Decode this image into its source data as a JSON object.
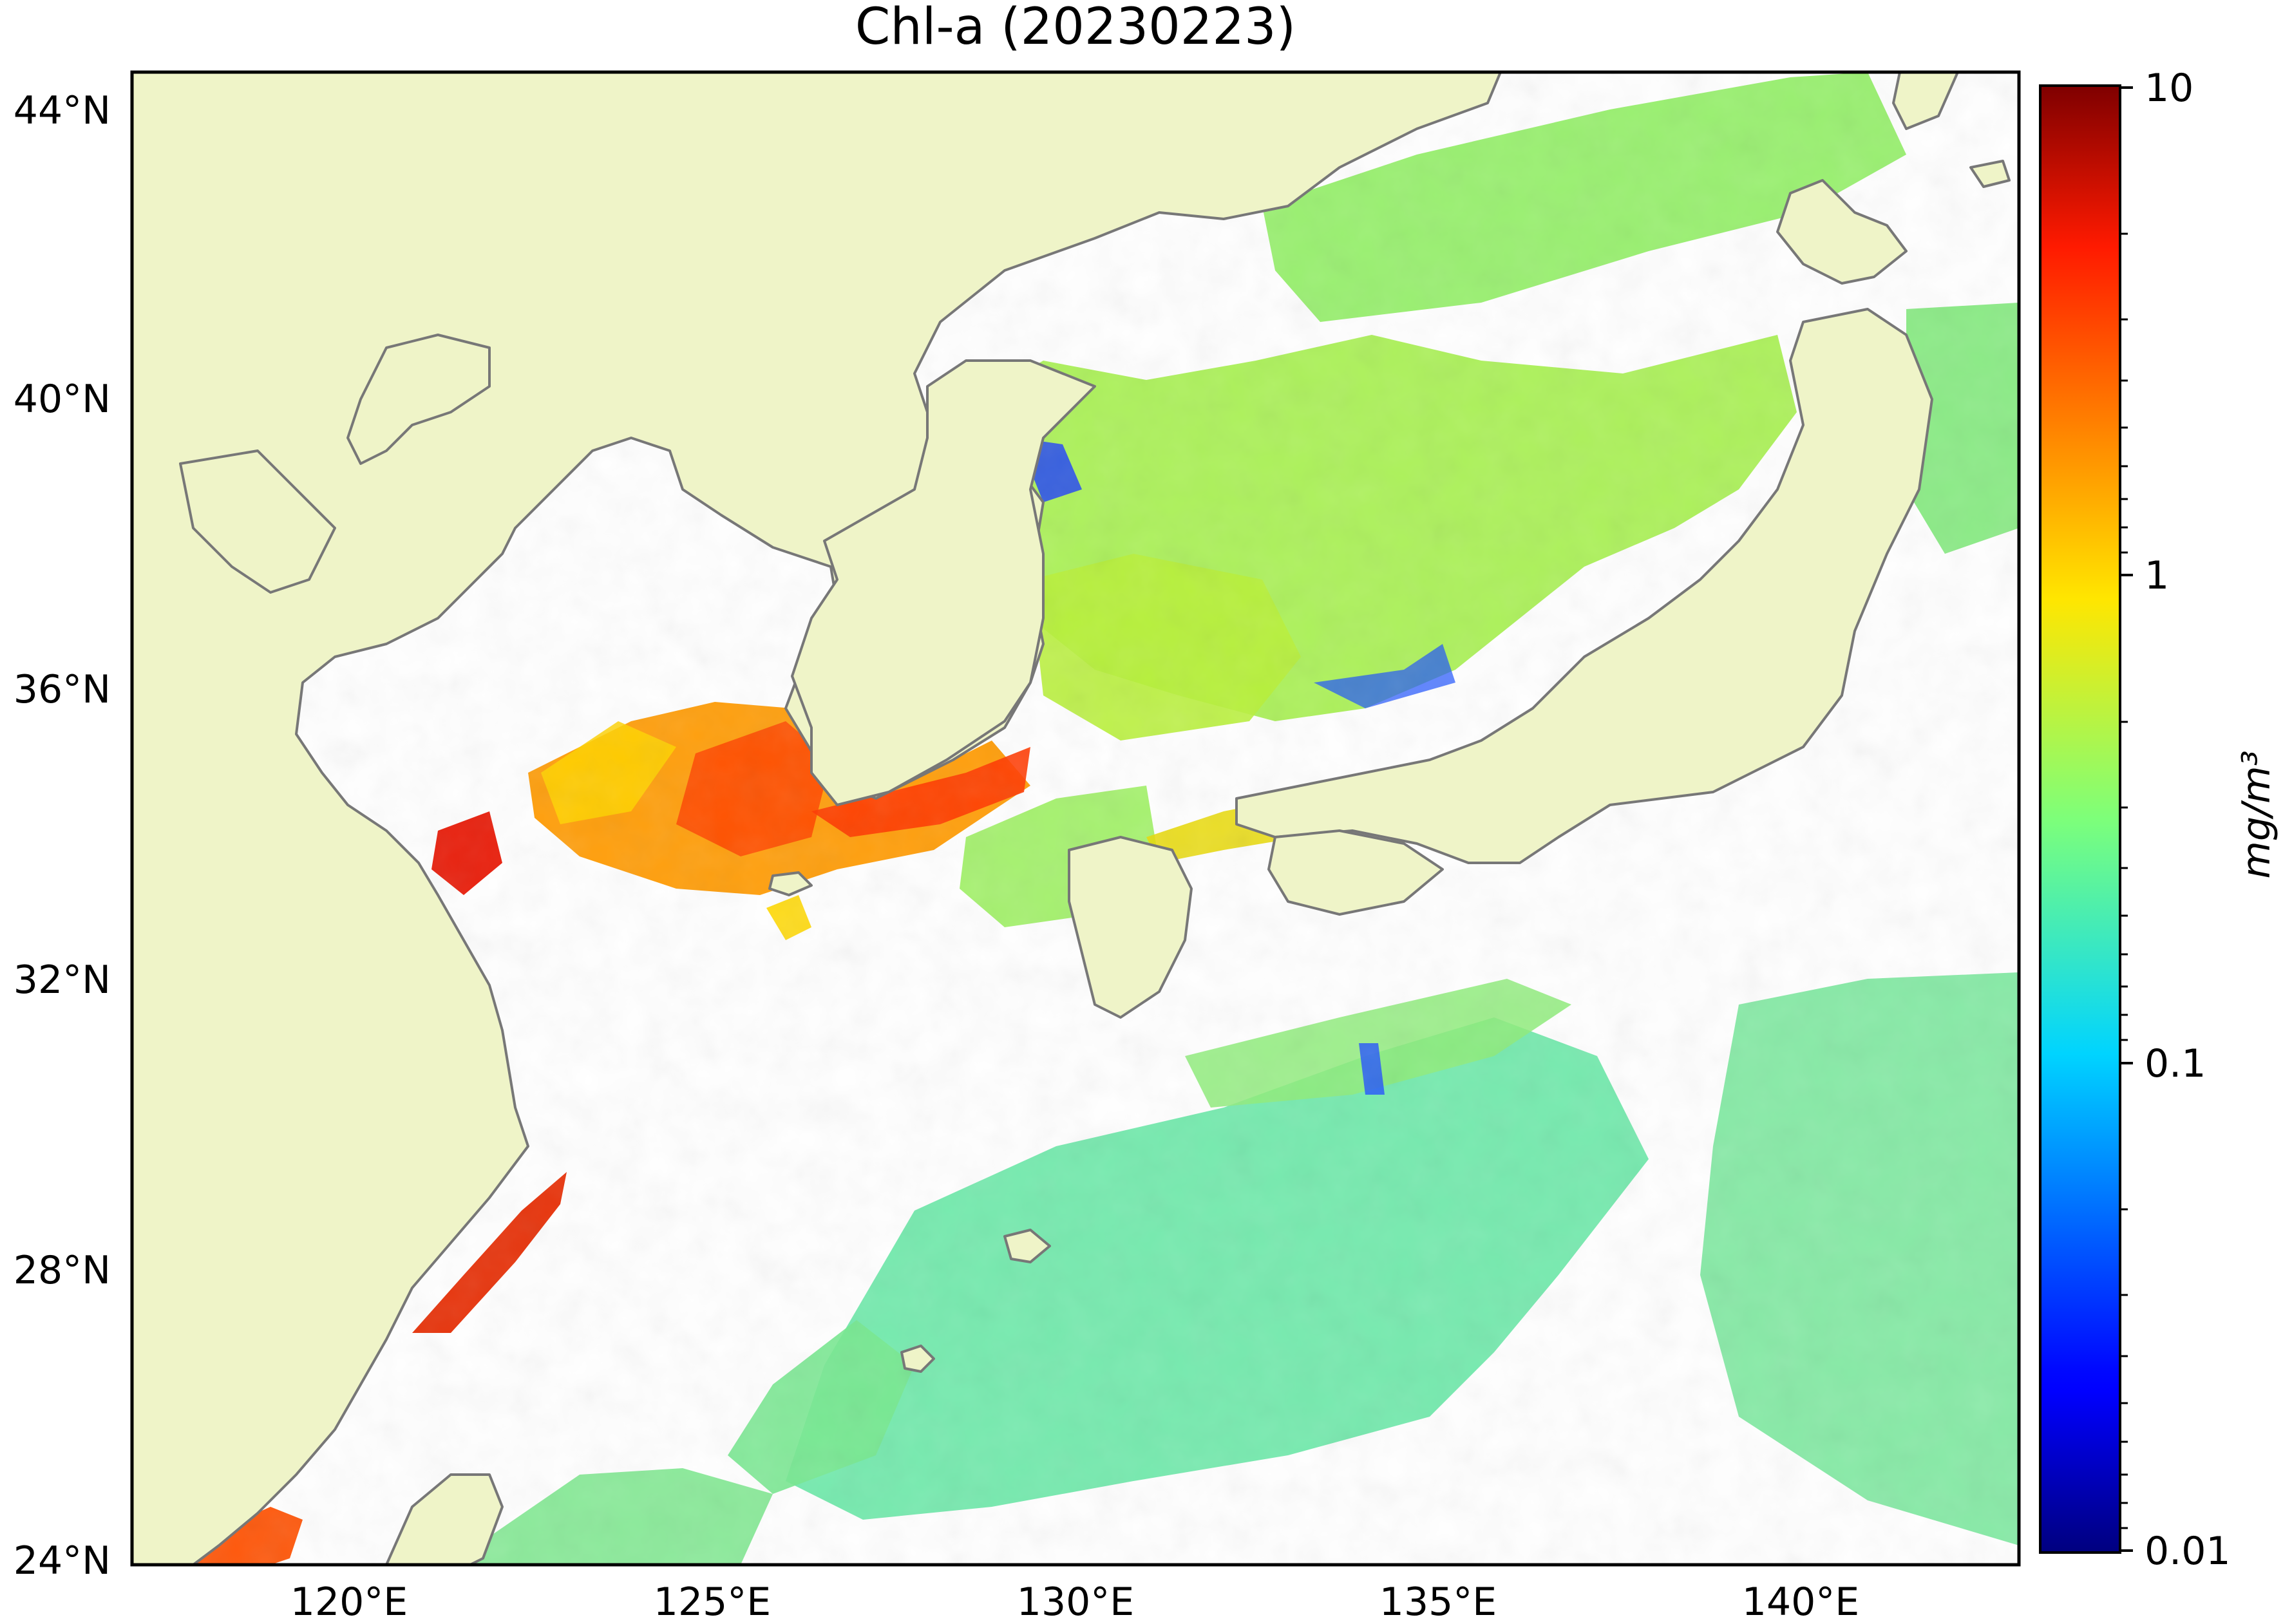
{
  "title": "Chl-a (20230223)",
  "map": {
    "lon_range": [
      117,
      143
    ],
    "lat_range": [
      24,
      44.5
    ],
    "lat_ticks": [
      "44°N",
      "40°N",
      "36°N",
      "32°N",
      "28°N",
      "24°N"
    ],
    "lon_ticks": [
      "120°E",
      "125°E",
      "130°E",
      "135°E",
      "140°E"
    ],
    "land_color": "#eff4c8",
    "coastline_color": "#777777",
    "no_data_color": "#ffffff"
  },
  "colorbar": {
    "label": "mg/m³",
    "scale": "log",
    "range": [
      0.01,
      10
    ],
    "tick_labels": [
      "10",
      "1",
      "0.1",
      "0.01"
    ],
    "colormap": "jet"
  }
}
